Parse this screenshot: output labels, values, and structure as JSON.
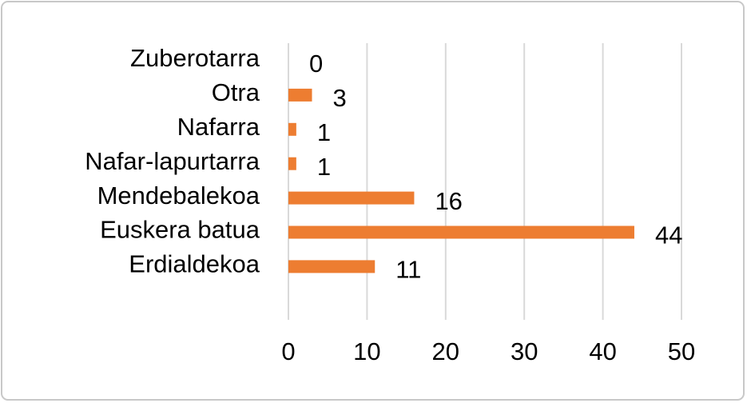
{
  "chart_data": {
    "type": "hbar",
    "categories": [
      "Zuberotarra",
      "Otra",
      "Nafarra",
      "Nafar-lapurtarra",
      "Mendebalekoa",
      "Euskera batua",
      "Erdialdekoa"
    ],
    "values": [
      0,
      3,
      1,
      1,
      16,
      44,
      11
    ],
    "color": "#ed7d31",
    "xlim": [
      0,
      50
    ],
    "xticks": [
      0,
      10,
      20,
      30,
      40,
      50
    ],
    "grid": true,
    "data_labels": true
  }
}
